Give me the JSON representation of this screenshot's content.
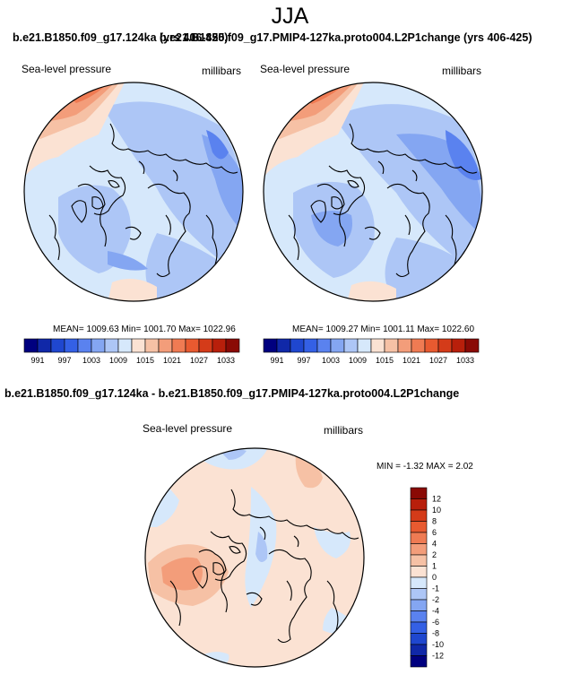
{
  "page": {
    "title": "JJA",
    "top_left_title": "b.e21.B1850.f09_g17.124ka (yrs 406-425)",
    "top_right_title": "b.e21.B1850.f09_g17.PMIP4-127ka.proto004.L2P1change (yrs 406-425)",
    "bottom_title": "b.e21.B1850.f09_g17.124ka - b.e21.B1850.f09_g17.PMIP4-127ka.proto004.L2P1change"
  },
  "panels": [
    {
      "field_label": "Sea-level pressure",
      "units_label": "millibars",
      "stats": "MEAN= 1009.63  Min= 1001.70  Max= 1022.96"
    },
    {
      "field_label": "Sea-level pressure",
      "units_label": "millibars",
      "stats": "MEAN= 1009.27  Min= 1001.11  Max= 1022.60"
    },
    {
      "field_label": "Sea-level pressure",
      "units_label": "millibars",
      "stats": "MIN = -1.32 MAX =  2.02"
    }
  ],
  "colorbars": {
    "absolute": {
      "colors": [
        "#00007f",
        "#1028a8",
        "#1f47cf",
        "#3460e5",
        "#5a82ef",
        "#84a6f2",
        "#adc6f6",
        "#d6e8fb",
        "#fbe2d3",
        "#f6c1a5",
        "#f39d7a",
        "#ef7b53",
        "#e85a30",
        "#d43b19",
        "#b81f0b",
        "#8a0a05"
      ],
      "tick_labels": [
        "991",
        "997",
        "1003",
        "1009",
        "1015",
        "1021",
        "1027",
        "1033"
      ]
    },
    "difference": {
      "colors": [
        "#8a0a05",
        "#b81f0b",
        "#d43b19",
        "#e85a30",
        "#ef7b53",
        "#f39d7a",
        "#f6c1a5",
        "#fbe2d3",
        "#d6e8fb",
        "#adc6f6",
        "#84a6f2",
        "#5a82ef",
        "#3460e5",
        "#1f47cf",
        "#1028a8",
        "#00007f"
      ],
      "tick_labels": [
        "12",
        "10",
        "8",
        "6",
        "4",
        "2",
        "1",
        "0",
        "-1",
        "-2",
        "-4",
        "-6",
        "-8",
        "-10",
        "-12"
      ]
    }
  }
}
